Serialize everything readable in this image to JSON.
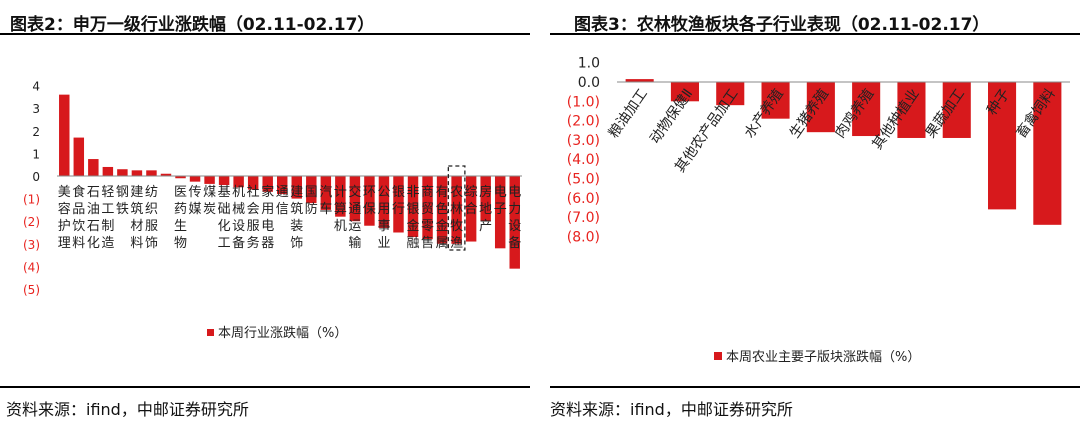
{
  "left": {
    "title": "图表2：申万一级行业涨跌幅（02.11-02.17）",
    "source": "资料来源：ifind，中邮证券研究所",
    "chart_data": {
      "type": "bar",
      "categories": [
        "美容护理",
        "食品饮料",
        "石油石化",
        "轻工制造",
        "钢铁",
        "建筑材料",
        "纺织服饰",
        "生物",
        "医药",
        "传媒",
        "煤炭",
        "基础化工",
        "机械设备",
        "社会服务",
        "家用电器",
        "通信",
        "建筑装饰",
        "国防",
        "汽车",
        "计算机",
        "交通运输",
        "环保",
        "公用事业",
        "银行",
        "非银金融",
        "商贸零售",
        "有色金属",
        "农林牧渔",
        "综合",
        "房地产",
        "电子",
        "电力设备"
      ],
      "category_labels": [
        "美容护理",
        "食品饮料",
        "石油石化",
        "轻工制造",
        "钢铁",
        "建筑材料",
        "纺织服饰",
        "",
        "医药生物",
        "传媒",
        "煤炭",
        "基础化工",
        "机械设备",
        "社会服务",
        "家用电器",
        "通信",
        "建筑装饰",
        "国防",
        "汽车",
        "计算机",
        "交通运输",
        "环保",
        "公用事业",
        "银行",
        "非银金融",
        "商贸零售",
        "有色金属",
        "农林牧渔",
        "综合",
        "房地产",
        "电子",
        "电力设备"
      ],
      "series": [
        {
          "name": "本周行业涨跌幅（%）",
          "values": [
            3.6,
            1.7,
            0.75,
            0.4,
            0.3,
            0.25,
            0.25,
            0.1,
            -0.1,
            -0.25,
            -0.35,
            -0.4,
            -0.5,
            -0.6,
            -0.7,
            -0.8,
            -1.0,
            -1.2,
            -1.5,
            -1.8,
            -2.0,
            -2.2,
            -2.3,
            -2.5,
            -2.7,
            -2.8,
            -3.0,
            -3.0,
            -2.9,
            -2.0,
            -3.2,
            -4.1
          ]
        }
      ],
      "highlight": "农林牧渔",
      "ylim": [
        -5,
        4
      ],
      "yticks": [
        "4",
        "3",
        "2",
        "1",
        "0",
        "(1)",
        "(2)",
        "(3)",
        "(4)",
        "(5)"
      ],
      "bar_color": "#d7191c",
      "negative_tick_color": "#e8231f",
      "legend": "本周行业涨跌幅（%）",
      "legend_position": "bottom-left"
    }
  },
  "right": {
    "title": "图表3：农林牧渔板块各子行业表现（02.11-02.17）",
    "source": "资料来源：ifind，中邮证券研究所",
    "chart_data": {
      "type": "bar",
      "categories": [
        "粮油加工",
        "动物保健Ⅱ",
        "其他农产品加工",
        "水产养殖",
        "生猪养殖",
        "肉鸡养殖",
        "其他种植业",
        "果蔬加工",
        "种子",
        "畜禽饲料"
      ],
      "series": [
        {
          "name": "本周农业主要子版块涨跌幅（%）",
          "values": [
            0.15,
            -1.0,
            -1.2,
            -1.9,
            -2.6,
            -2.8,
            -2.9,
            -2.9,
            -6.6,
            -7.4
          ]
        }
      ],
      "ylim": [
        -8,
        1
      ],
      "yticks": [
        "1.0",
        "0.0",
        "(1.0)",
        "(2.0)",
        "(3.0)",
        "(4.0)",
        "(5.0)",
        "(6.0)",
        "(7.0)",
        "(8.0)"
      ],
      "bar_color": "#d7191c",
      "negative_tick_color": "#e8231f",
      "legend": "本周农业主要子版块涨跌幅（%）",
      "legend_position": "bottom-center"
    }
  }
}
